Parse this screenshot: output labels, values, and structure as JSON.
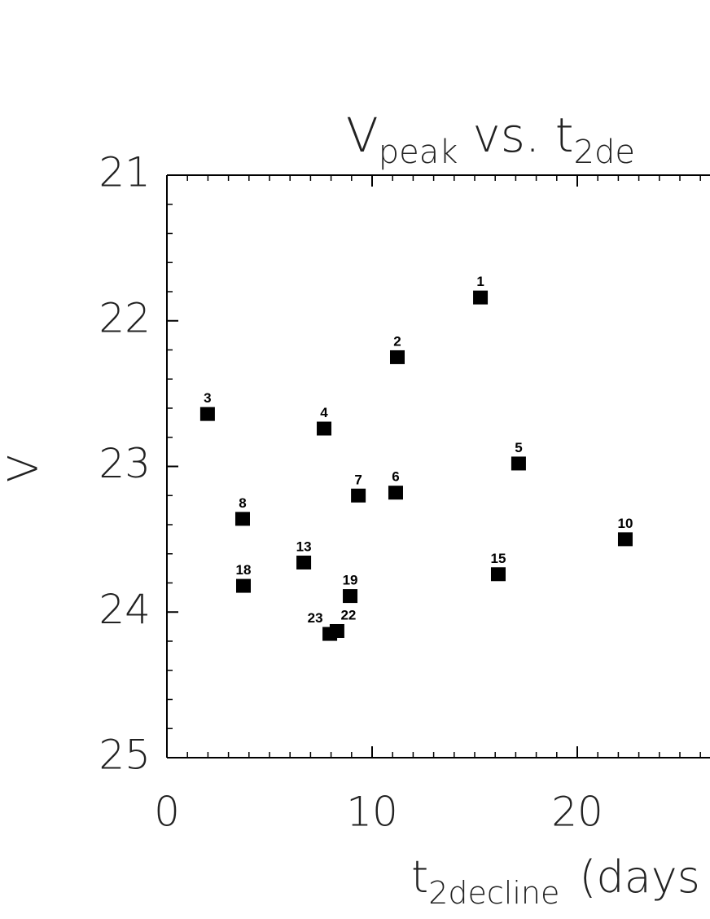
{
  "chart_data": {
    "type": "scatter",
    "title": {
      "main": "V",
      "main_sub": "peak",
      "rest": "vs. t",
      "rest_sub": "2de"
    },
    "x_label": {
      "main": "t",
      "sub": "2decline",
      "rest": "(days"
    },
    "y_label": "V",
    "x": [
      15.28,
      11.23,
      1.98,
      7.66,
      17.14,
      11.15,
      9.33,
      3.69,
      22.34,
      6.67,
      16.15,
      3.73,
      8.93,
      8.29,
      7.94
    ],
    "values": [
      21.84,
      22.25,
      22.64,
      22.74,
      22.98,
      23.18,
      23.2,
      23.36,
      23.5,
      23.66,
      23.74,
      23.82,
      23.89,
      24.13,
      24.15
    ],
    "labels": [
      "1",
      "2",
      "3",
      "4",
      "5",
      "6",
      "7",
      "8",
      "10",
      "13",
      "15",
      "18",
      "19",
      "22",
      "23"
    ],
    "color": "#000000",
    "xlim": [
      0,
      30
    ],
    "ylim": [
      25,
      21
    ],
    "xticks": [
      0,
      10,
      20
    ],
    "yticks": [
      21,
      22,
      23,
      24,
      25
    ],
    "minor_xticks": [
      1,
      2,
      3,
      4,
      5,
      6,
      7,
      8,
      9,
      11,
      12,
      13,
      14,
      15,
      16,
      17,
      18,
      19,
      21,
      22,
      23,
      24,
      25,
      26
    ],
    "minor_yticks": [
      21.2,
      21.4,
      21.6,
      21.8,
      22.2,
      22.4,
      22.6,
      22.8,
      23.2,
      23.4,
      23.6,
      23.8,
      24.2,
      24.4,
      24.6,
      24.8
    ]
  }
}
